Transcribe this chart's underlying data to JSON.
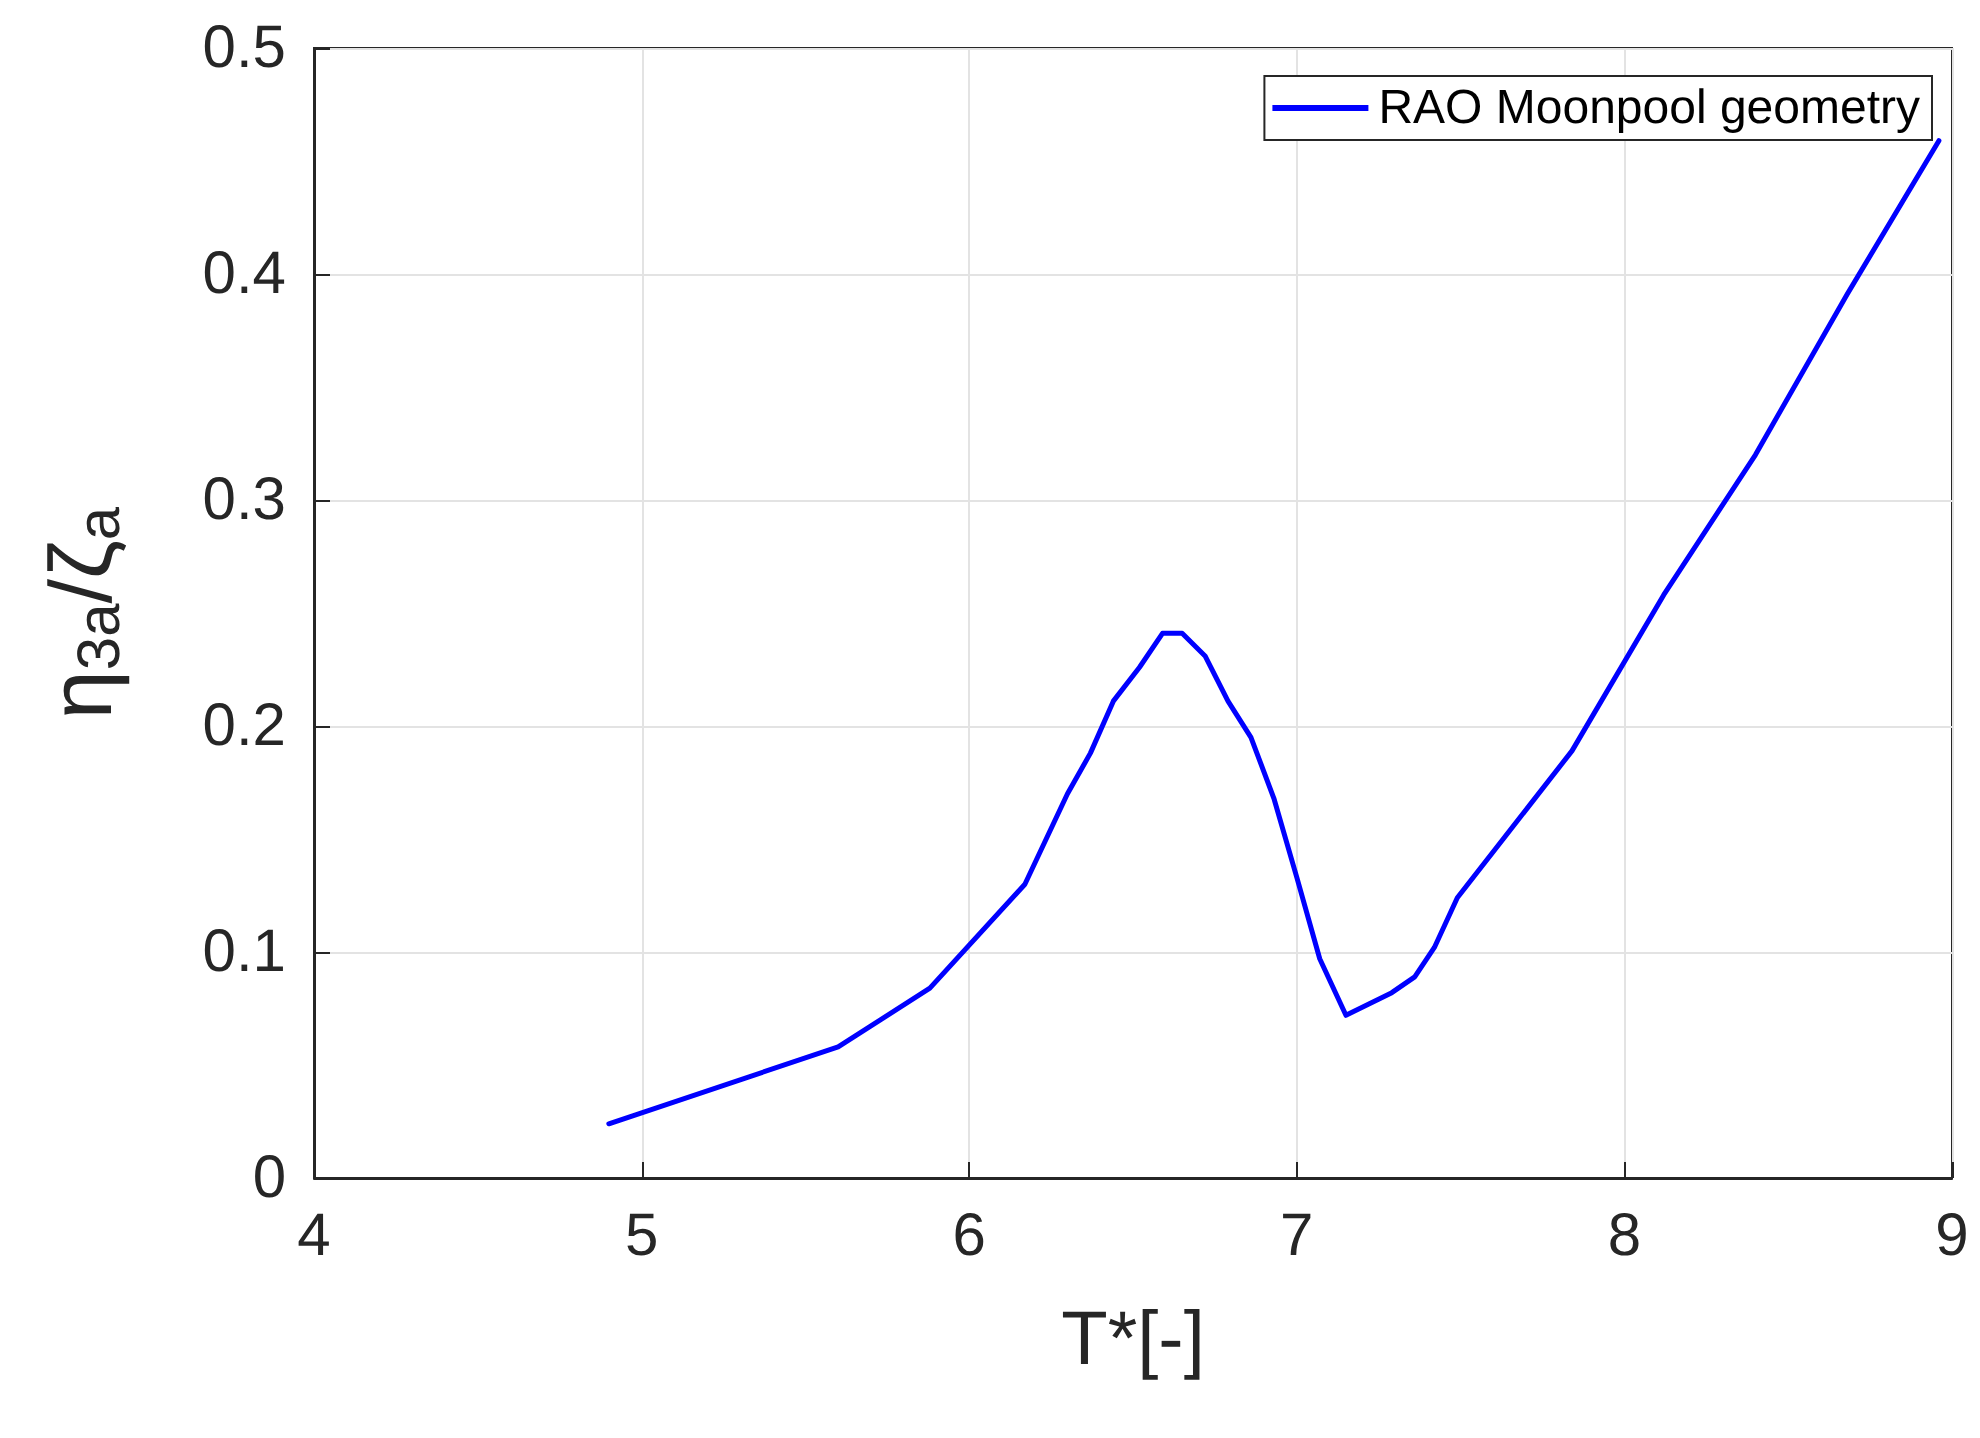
{
  "chart_data": {
    "type": "line",
    "xlabel": "T*[-]",
    "ylabel": "η$_{3a}$/ζ$_{a}$",
    "xlim": [
      4,
      9
    ],
    "xticks": [
      4,
      5,
      6,
      7,
      8,
      9
    ],
    "ylim": [
      0,
      0.5
    ],
    "yticks": [
      0,
      0.1,
      0.2,
      0.3,
      0.4,
      0.5
    ],
    "grid": true,
    "legend": "top right",
    "marker": "none",
    "line_style": "solid",
    "series": [
      {
        "name": "RAO Moonpool geometry",
        "color": "#0000ff",
        "x": [
          4.9,
          5.6,
          5.88,
          6.17,
          6.3,
          6.37,
          6.44,
          6.52,
          6.59,
          6.65,
          6.72,
          6.79,
          6.86,
          6.93,
          7.0,
          7.07,
          7.15,
          7.22,
          7.29,
          7.36,
          7.42,
          7.49,
          7.63,
          7.84,
          8.12,
          8.4,
          8.68,
          8.96
        ],
        "values": [
          0.024,
          0.058,
          0.084,
          0.13,
          0.17,
          0.188,
          0.211,
          0.226,
          0.241,
          0.241,
          0.231,
          0.211,
          0.195,
          0.168,
          0.133,
          0.097,
          0.072,
          0.077,
          0.082,
          0.089,
          0.102,
          0.124,
          0.15,
          0.189,
          0.258,
          0.32,
          0.391,
          0.459
        ]
      }
    ]
  }
}
